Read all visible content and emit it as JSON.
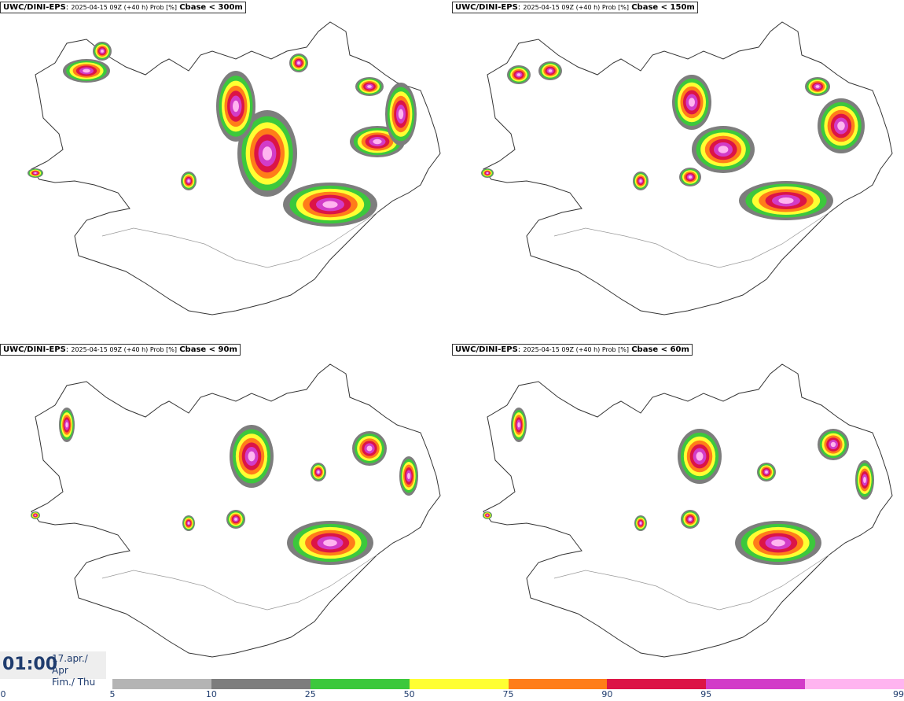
{
  "panels": [
    {
      "model": "UWC/DINI-EPS",
      "meta": "2025-04-15 09Z (+40 h) Prob [%]",
      "variable": "Cbase < 300m"
    },
    {
      "model": "UWC/DINI-EPS",
      "meta": "2025-04-15 09Z (+40 h) Prob [%]",
      "variable": "Cbase < 150m"
    },
    {
      "model": "UWC/DINI-EPS",
      "meta": "2025-04-15 09Z (+40 h) Prob [%]",
      "variable": "Cbase < 90m"
    },
    {
      "model": "UWC/DINI-EPS",
      "meta": "2025-04-15 09Z (+40 h) Prob [%]",
      "variable": "Cbase < 60m"
    }
  ],
  "valid_time": {
    "time": "01:00",
    "date_line1": "17.apr./ Apr",
    "date_line2": "Fim./ Thu"
  },
  "legend": {
    "ticks": [
      "0",
      "5",
      "10",
      "25",
      "50",
      "75",
      "90",
      "95",
      "99"
    ],
    "colors": [
      "#b4b4b4",
      "#7d7d7d",
      "#3cc83c",
      "#ffff32",
      "#ff7d19",
      "#dc1446",
      "#d23cc8",
      "#ffb4f0"
    ]
  },
  "colors": {
    "title_text": "#1f3c6e",
    "coastline": "#333333",
    "background": "#ffffff"
  }
}
